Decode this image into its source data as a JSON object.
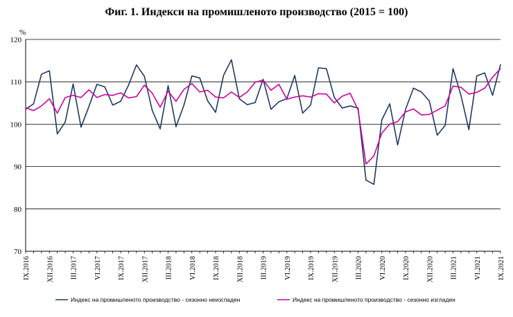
{
  "chart_data": {
    "type": "line",
    "title": "Фиг. 1. Индекси на промишленото производство (2015 = 100)",
    "ylabel": "%",
    "xlabel": "",
    "ylim": [
      70,
      120
    ],
    "yticks": [
      70,
      80,
      90,
      100,
      110,
      120
    ],
    "grid": true,
    "legend_position": "bottom",
    "x": [
      "IX.2016",
      "X.2016",
      "XI.2016",
      "XII.2016",
      "I.2017",
      "II.2017",
      "III.2017",
      "IV.2017",
      "V.2017",
      "VI.2017",
      "VII.2017",
      "VIII.2017",
      "IX.2017",
      "X.2017",
      "XI.2017",
      "XII.2017",
      "I.2018",
      "II.2018",
      "III.2018",
      "IV.2018",
      "V.2018",
      "VI.2018",
      "VII.2018",
      "VIII.2018",
      "IX.2018",
      "X.2018",
      "XI.2018",
      "XII.2018",
      "I.2019",
      "II.2019",
      "III.2019",
      "IV.2019",
      "V.2019",
      "VI.2019",
      "VII.2019",
      "VIII.2019",
      "IX.2019",
      "X.2019",
      "XI.2019",
      "XII.2019",
      "I.2020",
      "II.2020",
      "III.2020",
      "IV.2020",
      "V.2020",
      "VI.2020",
      "VII.2020",
      "VIII.2020",
      "IX.2020",
      "X.2020",
      "XI.2020",
      "XII.2020",
      "I.2021",
      "II.2021",
      "III.2021",
      "IV.2021",
      "V.2021",
      "VI.2021",
      "VII.2021",
      "VIII.2021",
      "IX.2021"
    ],
    "tick_labels": [
      "IX.2016",
      "XII.2016",
      "III.2017",
      "VI.2017",
      "IX.2017",
      "XII.2017",
      "III.2018",
      "VI.2018",
      "IX.2018",
      "XII.2018",
      "III.2019",
      "VI.2019",
      "IX.2019",
      "XII.2019",
      "III.2020",
      "VI.2020",
      "IX.2020",
      "XII.2020",
      "III.2021",
      "VI.2021",
      "IX.2021"
    ],
    "series": [
      {
        "name": "Индекс на промишленото производство - сезонно неизгладен",
        "color": "#1f3864",
        "values": [
          103.5,
          104.8,
          111.8,
          112.6,
          97.7,
          100.5,
          109.5,
          99.3,
          104.2,
          109.4,
          108.8,
          104.5,
          105.4,
          109.2,
          114.0,
          111.3,
          103.2,
          98.9,
          109.1,
          99.4,
          104.5,
          111.4,
          110.9,
          105.5,
          102.8,
          111.5,
          115.2,
          106.0,
          104.6,
          105.1,
          110.6,
          103.5,
          105.3,
          106.0,
          111.5,
          102.6,
          104.5,
          113.3,
          113.1,
          106.3,
          103.8,
          104.3,
          103.8,
          86.8,
          85.8,
          101.0,
          104.8,
          95.1,
          103.5,
          108.5,
          107.6,
          105.5,
          97.4,
          99.7,
          113.1,
          106.8,
          98.7,
          111.4,
          112.1,
          106.8,
          114.1
        ]
      },
      {
        "name": "Индекс на промишленото производство - сезонно изгладен",
        "color": "#cc00a0",
        "values": [
          103.9,
          103.2,
          104.3,
          106.0,
          102.6,
          106.3,
          106.8,
          106.3,
          108.1,
          106.3,
          107.0,
          106.8,
          107.4,
          106.2,
          106.5,
          109.2,
          107.3,
          104.0,
          107.8,
          105.4,
          108.2,
          109.6,
          107.6,
          108.0,
          106.4,
          106.2,
          107.6,
          106.3,
          107.6,
          109.9,
          110.4,
          108.0,
          109.4,
          105.9,
          106.4,
          106.7,
          106.4,
          107.2,
          107.1,
          105.0,
          106.6,
          107.3,
          103.4,
          90.6,
          92.5,
          97.9,
          100.0,
          100.6,
          102.9,
          103.6,
          102.2,
          102.3,
          103.3,
          104.3,
          109.0,
          108.7,
          107.1,
          107.5,
          108.5,
          111.1,
          113.1
        ]
      }
    ]
  },
  "legend": {
    "items": [
      {
        "label": "Индекс на промишленото производство - сезонно неизгладен",
        "color": "#1f3864"
      },
      {
        "label": "Индекс на промишленото производство - сезонно изгладен",
        "color": "#cc00a0"
      }
    ]
  }
}
